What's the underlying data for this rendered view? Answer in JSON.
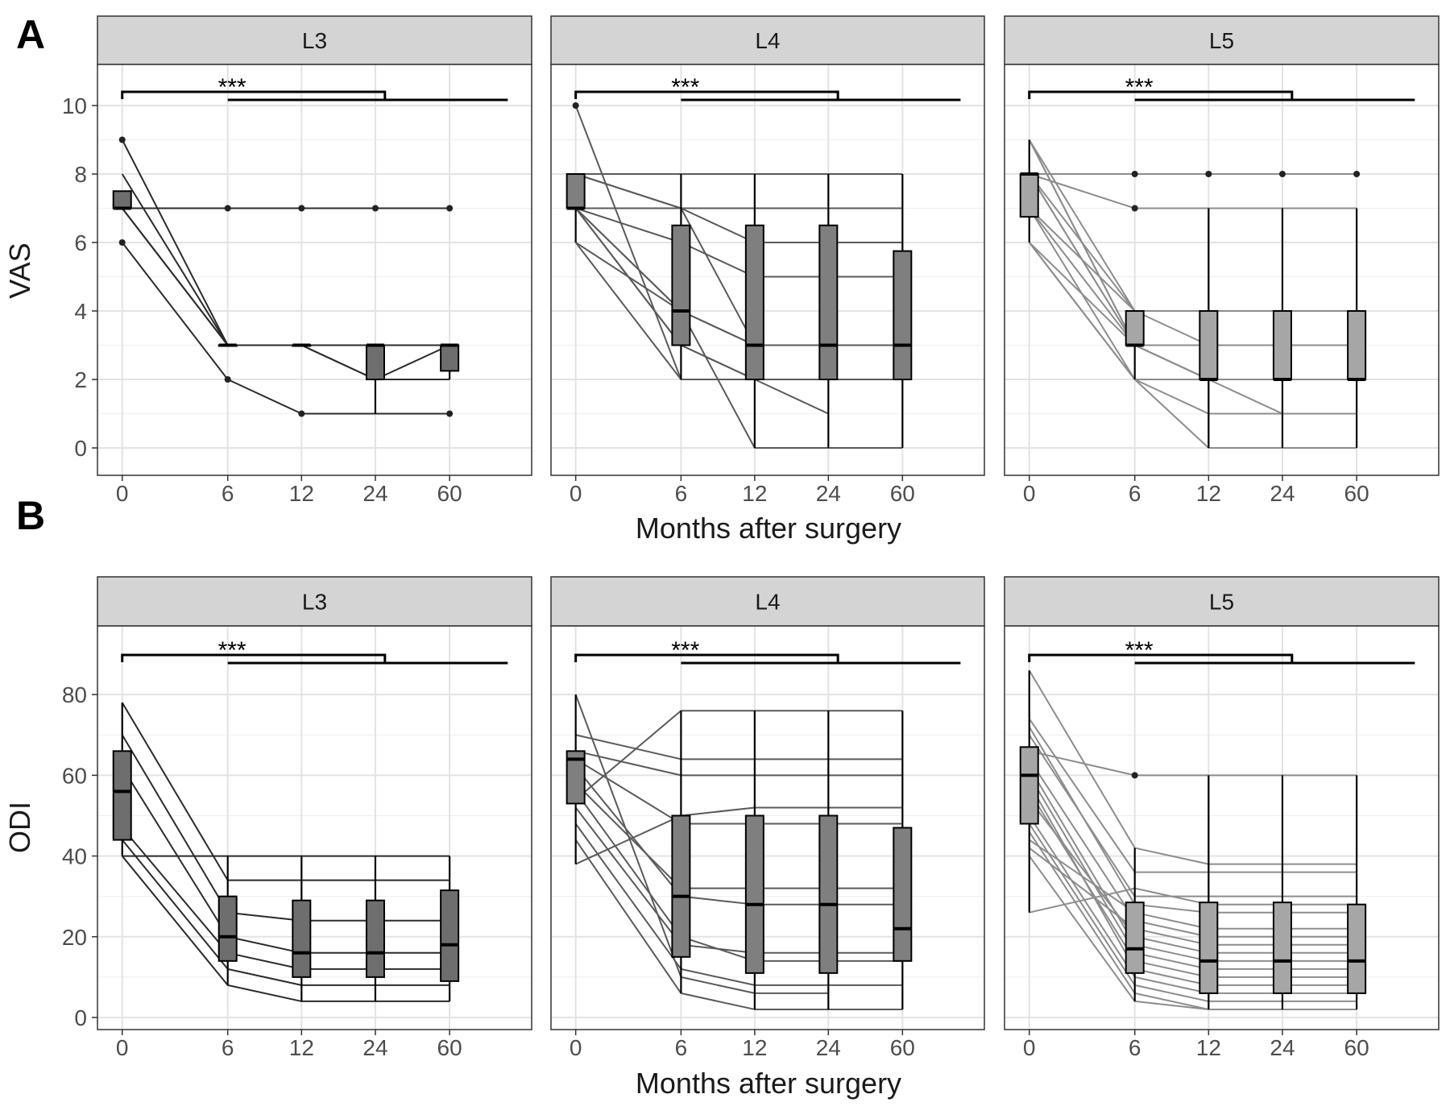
{
  "figure": {
    "panel_labels": [
      "A",
      "B"
    ]
  },
  "chart_data": [
    {
      "type": "box",
      "panel": "A",
      "ylabel": "VAS",
      "xlabel": "Months after surgery",
      "x_ticks": [
        "0",
        "6",
        "12",
        "24",
        "60"
      ],
      "y_ticks": [
        0,
        2,
        4,
        6,
        8,
        10
      ],
      "ylim": [
        -0.8,
        11.2
      ],
      "grid": true,
      "significance_label": "***",
      "facets": [
        {
          "name": "L3",
          "fill": "#6e6e6e",
          "line_color": "#2b2b2b",
          "boxes": [
            {
              "x": 0,
              "min": 7,
              "q1": 7,
              "median": 7,
              "q3": 7.5,
              "max": 7.5,
              "outliers": [
                9,
                6
              ]
            },
            {
              "x": 1,
              "min": 3,
              "q1": 3,
              "median": 3,
              "q3": 3,
              "max": 3,
              "outliers": [
                7,
                2
              ]
            },
            {
              "x": 2,
              "min": 3,
              "q1": 3,
              "median": 3,
              "q3": 3,
              "max": 3,
              "outliers": [
                7,
                1
              ]
            },
            {
              "x": 3,
              "min": 1,
              "q1": 2,
              "median": 3,
              "q3": 3,
              "max": 3,
              "outliers": [
                7
              ]
            },
            {
              "x": 4,
              "min": 2,
              "q1": 2.25,
              "median": 3,
              "q3": 3,
              "max": 3,
              "outliers": [
                7,
                1
              ]
            }
          ],
          "patients": [
            [
              9,
              3,
              3,
              2,
              2
            ],
            [
              8,
              3,
              3,
              3,
              3
            ],
            [
              7,
              3,
              3,
              3,
              3
            ],
            [
              7,
              7,
              7,
              7,
              7
            ],
            [
              7,
              3,
              3,
              2,
              3
            ],
            [
              6,
              2,
              1,
              1,
              1
            ]
          ]
        },
        {
          "name": "L4",
          "fill": "#7f7f7f",
          "line_color": "#5a5a5a",
          "boxes": [
            {
              "x": 0,
              "min": 6,
              "q1": 7,
              "median": 7,
              "q3": 8,
              "max": 8,
              "outliers": [
                10
              ]
            },
            {
              "x": 1,
              "min": 2,
              "q1": 3,
              "median": 4,
              "q3": 6.5,
              "max": 8,
              "outliers": []
            },
            {
              "x": 2,
              "min": 0,
              "q1": 2,
              "median": 3,
              "q3": 6.5,
              "max": 8,
              "outliers": []
            },
            {
              "x": 3,
              "min": 0,
              "q1": 2,
              "median": 3,
              "q3": 6.5,
              "max": 8,
              "outliers": []
            },
            {
              "x": 4,
              "min": 0,
              "q1": 2,
              "median": 3,
              "q3": 5.75,
              "max": 8,
              "outliers": []
            }
          ],
          "patients": [
            [
              10,
              2,
              2,
              2,
              2
            ],
            [
              8,
              8,
              8,
              8,
              8
            ],
            [
              8,
              7,
              3,
              3,
              3
            ],
            [
              8,
              7,
              6,
              6,
              6
            ],
            [
              7,
              6,
              5,
              5,
              5
            ],
            [
              7,
              4,
              3,
              3,
              3
            ],
            [
              7,
              3,
              2,
              1
            ],
            [
              7,
              4,
              0,
              0,
              0
            ],
            [
              7,
              7,
              7,
              7,
              7
            ],
            [
              6,
              2,
              2,
              2,
              2
            ],
            [
              6,
              4,
              3,
              3,
              3
            ],
            [
              7,
              3,
              2,
              2,
              2
            ]
          ]
        },
        {
          "name": "L5",
          "fill": "#a6a6a6",
          "line_color": "#8c8c8c",
          "boxes": [
            {
              "x": 0,
              "min": 6,
              "q1": 6.75,
              "median": 8,
              "q3": 8,
              "max": 9,
              "outliers": []
            },
            {
              "x": 1,
              "min": 2,
              "q1": 3,
              "median": 3,
              "q3": 4,
              "max": 4,
              "outliers": [
                8,
                7
              ]
            },
            {
              "x": 2,
              "min": 0,
              "q1": 2,
              "median": 2,
              "q3": 4,
              "max": 7,
              "outliers": [
                8
              ]
            },
            {
              "x": 3,
              "min": 0,
              "q1": 2,
              "median": 2,
              "q3": 4,
              "max": 7,
              "outliers": [
                8
              ]
            },
            {
              "x": 4,
              "min": 0,
              "q1": 2,
              "median": 2,
              "q3": 4,
              "max": 7,
              "outliers": [
                8
              ]
            }
          ],
          "patients": [
            [
              9,
              4,
              4,
              4,
              4
            ],
            [
              9,
              3,
              2,
              2,
              2
            ],
            [
              9,
              3,
              3,
              3,
              3
            ],
            [
              8,
              8,
              8,
              8,
              8
            ],
            [
              8,
              7,
              7,
              7,
              7
            ],
            [
              8,
              4,
              3,
              3,
              3
            ],
            [
              8,
              3,
              2,
              2,
              2
            ],
            [
              8,
              3,
              2,
              1
            ],
            [
              7,
              2,
              0,
              0,
              0
            ],
            [
              7,
              3,
              2,
              2,
              2
            ],
            [
              7,
              4,
              4,
              4,
              4
            ],
            [
              6,
              2,
              1,
              1,
              1
            ],
            [
              6,
              3,
              2,
              2,
              2
            ],
            [
              6,
              2,
              2,
              2,
              2
            ]
          ]
        }
      ]
    },
    {
      "type": "box",
      "panel": "B",
      "ylabel": "ODI",
      "xlabel": "Months after surgery",
      "x_ticks": [
        "0",
        "6",
        "12",
        "24",
        "60"
      ],
      "y_ticks": [
        0,
        20,
        40,
        60,
        80
      ],
      "ylim": [
        -3,
        97
      ],
      "grid": true,
      "significance_label": "***",
      "facets": [
        {
          "name": "L3",
          "fill": "#6e6e6e",
          "line_color": "#2b2b2b",
          "boxes": [
            {
              "x": 0,
              "min": 40,
              "q1": 44,
              "median": 56,
              "q3": 66,
              "max": 78,
              "outliers": []
            },
            {
              "x": 1,
              "min": 8,
              "q1": 14,
              "median": 20,
              "q3": 30,
              "max": 40,
              "outliers": []
            },
            {
              "x": 2,
              "min": 4,
              "q1": 10,
              "median": 16,
              "q3": 29,
              "max": 40,
              "outliers": []
            },
            {
              "x": 3,
              "min": 4,
              "q1": 10,
              "median": 16,
              "q3": 29,
              "max": 40,
              "outliers": []
            },
            {
              "x": 4,
              "min": 4,
              "q1": 9,
              "median": 18,
              "q3": 31.5,
              "max": 40,
              "outliers": []
            }
          ],
          "patients": [
            [
              78,
              34,
              34,
              34,
              34
            ],
            [
              70,
              26,
              24,
              24,
              24
            ],
            [
              62,
              20,
              16,
              16,
              16
            ],
            [
              47,
              16,
              12,
              12,
              12
            ],
            [
              40,
              8,
              4,
              4,
              4
            ],
            [
              40,
              40,
              40,
              40,
              40
            ],
            [
              44,
              12,
              8,
              8,
              8
            ]
          ]
        },
        {
          "name": "L4",
          "fill": "#7f7f7f",
          "line_color": "#5a5a5a",
          "boxes": [
            {
              "x": 0,
              "min": 38,
              "q1": 53,
              "median": 64,
              "q3": 66,
              "max": 80,
              "outliers": []
            },
            {
              "x": 1,
              "min": 6,
              "q1": 15,
              "median": 30,
              "q3": 50,
              "max": 76,
              "outliers": []
            },
            {
              "x": 2,
              "min": 2,
              "q1": 11,
              "median": 28,
              "q3": 50,
              "max": 76,
              "outliers": []
            },
            {
              "x": 3,
              "min": 2,
              "q1": 11,
              "median": 28,
              "q3": 50,
              "max": 76,
              "outliers": []
            },
            {
              "x": 4,
              "min": 2,
              "q1": 14,
              "median": 22,
              "q3": 47,
              "max": 76,
              "outliers": []
            }
          ],
          "patients": [
            [
              80,
              10,
              6,
              6
            ],
            [
              70,
              64,
              64,
              64,
              64
            ],
            [
              66,
              60,
              60,
              60,
              60
            ],
            [
              64,
              48,
              48,
              48,
              48
            ],
            [
              62,
              30,
              28,
              28,
              28
            ],
            [
              58,
              32,
              32,
              32,
              32
            ],
            [
              56,
              20,
              14,
              14,
              14
            ],
            [
              54,
              76,
              76,
              76,
              76
            ],
            [
              52,
              18,
              16,
              16,
              16
            ],
            [
              48,
              12,
              8,
              8,
              8
            ],
            [
              44,
              6,
              2,
              2,
              2
            ],
            [
              38,
              50,
              52,
              52,
              52
            ]
          ]
        },
        {
          "name": "L5",
          "fill": "#a6a6a6",
          "line_color": "#8c8c8c",
          "boxes": [
            {
              "x": 0,
              "min": 26,
              "q1": 48,
              "median": 60,
              "q3": 67,
              "max": 86,
              "outliers": []
            },
            {
              "x": 1,
              "min": 4,
              "q1": 11,
              "median": 17,
              "q3": 28.5,
              "max": 42,
              "outliers": [
                60
              ]
            },
            {
              "x": 2,
              "min": 2,
              "q1": 6,
              "median": 14,
              "q3": 28.5,
              "max": 60,
              "outliers": []
            },
            {
              "x": 3,
              "min": 2,
              "q1": 6,
              "median": 14,
              "q3": 28.5,
              "max": 60,
              "outliers": []
            },
            {
              "x": 4,
              "min": 2,
              "q1": 6,
              "median": 14,
              "q3": 28,
              "max": 60,
              "outliers": []
            }
          ],
          "patients": [
            [
              86,
              42,
              38,
              38,
              38
            ],
            [
              74,
              36,
              36,
              36,
              36
            ],
            [
              72,
              28,
              26,
              26,
              26
            ],
            [
              70,
              30,
              30,
              30,
              30
            ],
            [
              66,
              60,
              60,
              60,
              60
            ],
            [
              64,
              24,
              20,
              20,
              20
            ],
            [
              62,
              18,
              14,
              14,
              14
            ],
            [
              60,
              16,
              12,
              12,
              12
            ],
            [
              58,
              12,
              8,
              8,
              8
            ],
            [
              56,
              14,
              10,
              10,
              10
            ],
            [
              54,
              20,
              16,
              16,
              16
            ],
            [
              50,
              10,
              6,
              6,
              6
            ],
            [
              48,
              8,
              4,
              4,
              4
            ],
            [
              46,
              6,
              2,
              2,
              2
            ],
            [
              44,
              26,
              22,
              22,
              22
            ],
            [
              42,
              22,
              18,
              18,
              18
            ],
            [
              40,
              4,
              2,
              2,
              2
            ],
            [
              26,
              32,
              28,
              28,
              28
            ]
          ]
        }
      ]
    }
  ]
}
